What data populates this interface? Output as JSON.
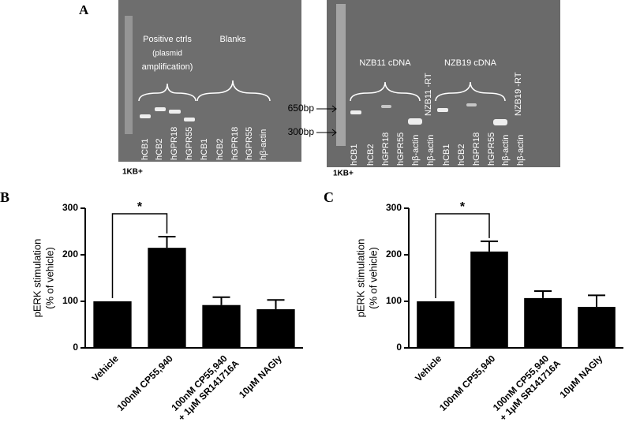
{
  "gel": {
    "panel": "A",
    "left_lanes": [
      "hCB1",
      "hCB2",
      "hGPR18",
      "hGPR55",
      "hCB1",
      "hCB2",
      "hGPR18",
      "hGPR55",
      "hβ-actin"
    ],
    "right_lanes": [
      "hCB1",
      "hCB2",
      "hGPR18",
      "hGPR55",
      "hβ-actin",
      "hβ-actin",
      "hCB1",
      "hCB2",
      "hGPR18",
      "hGPR55",
      "hβ-actin",
      "hβ-actin"
    ],
    "positive_ctrls": [
      "Positive ctrls",
      "(plasmid",
      "amplification)"
    ],
    "blanks": "Blanks",
    "nzb11": "NZB11 cDNA",
    "nzb19": "NZB19 cDNA",
    "nzb11_rt": "NZB11 -RT",
    "nzb19_rt": "NZB19 -RT",
    "marker_650": "650bp",
    "marker_300": "300bp",
    "ladder": "1KB+"
  },
  "chart_data": [
    {
      "type": "bar",
      "panel": "B",
      "ylabel": [
        "pERK stimulation",
        "(% of vehicle)"
      ],
      "categories": [
        "Vehicle",
        "100nM CP55,940",
        [
          "100nM CP55,940",
          "+ 1μM SR141716A"
        ],
        "10μM NAGly"
      ],
      "values": [
        100,
        215,
        92,
        83
      ],
      "errors": [
        null,
        24,
        17,
        20
      ],
      "color": "#000000",
      "ylim": [
        0,
        300
      ],
      "yticks": [
        0,
        100,
        200,
        300
      ],
      "significance": "*"
    },
    {
      "type": "bar",
      "panel": "C",
      "ylabel": [
        "pERK stimulation",
        "(% of vehicle)"
      ],
      "categories": [
        "Vehicle",
        "100nM CP55,940",
        [
          "100nM CP55,940",
          "+ 1μM SR141716A"
        ],
        "10μM NAGly"
      ],
      "values": [
        100,
        207,
        107,
        88
      ],
      "errors": [
        null,
        22,
        15,
        25
      ],
      "color": "#000000",
      "ylim": [
        0,
        300
      ],
      "yticks": [
        0,
        100,
        200,
        300
      ],
      "significance": "*"
    }
  ]
}
